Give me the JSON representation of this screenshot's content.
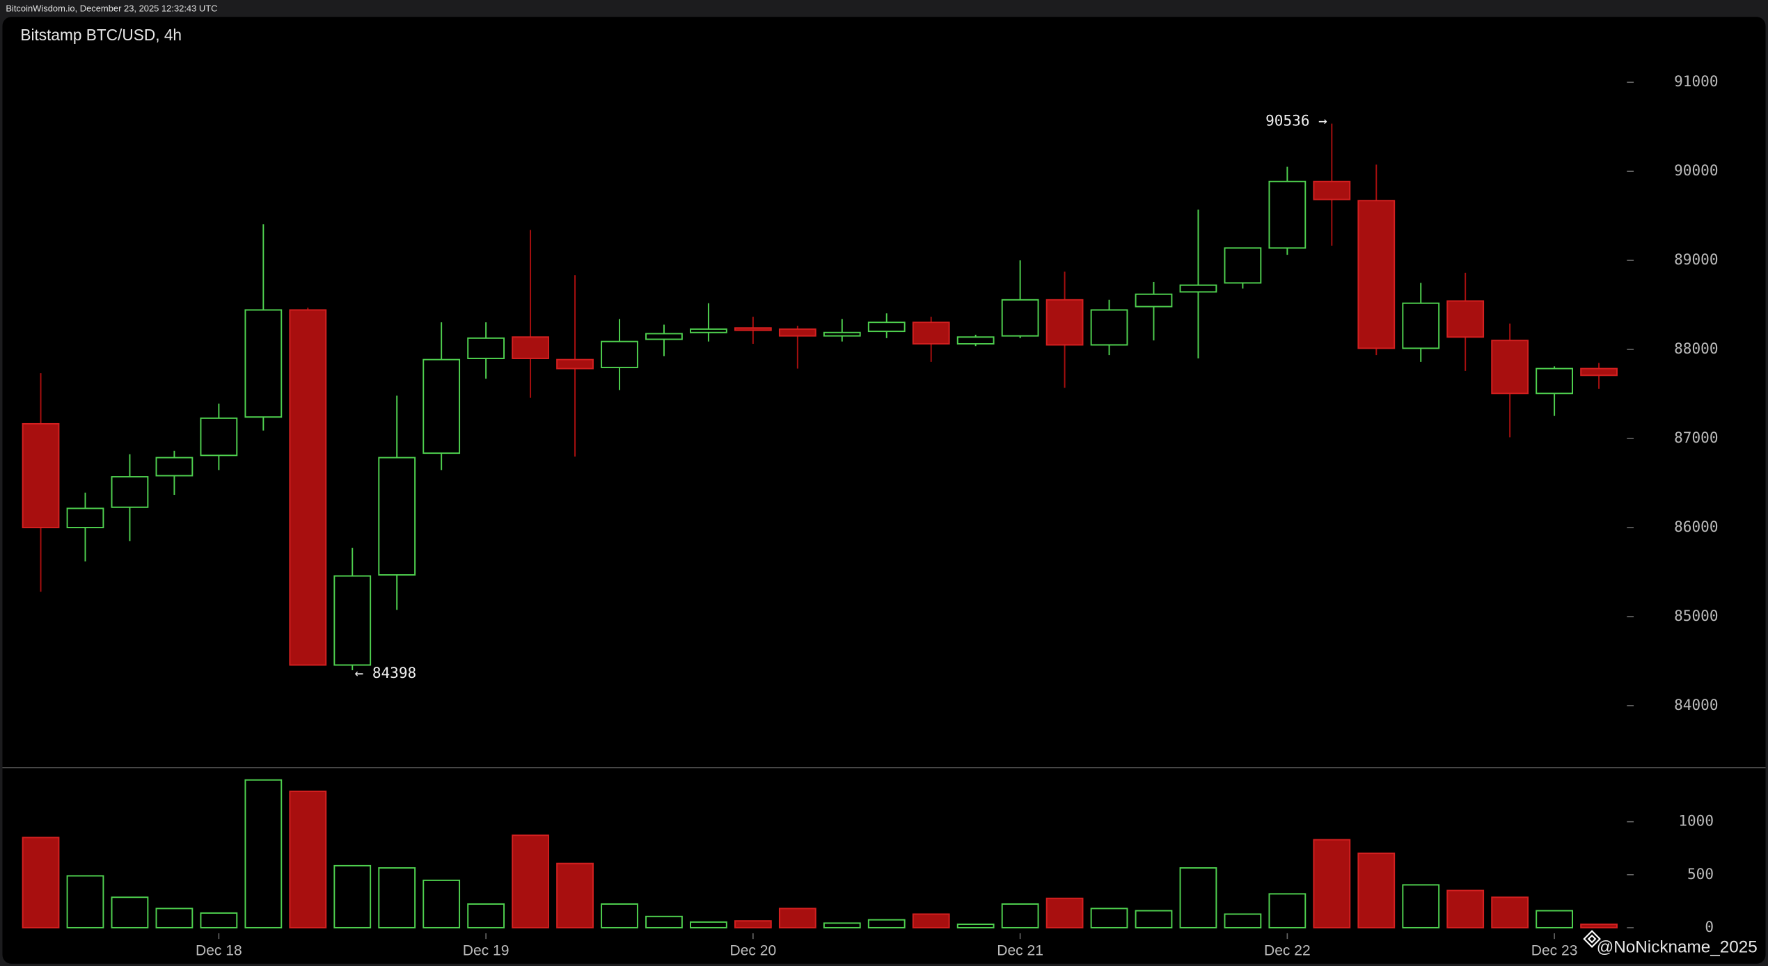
{
  "header": "BitcoinWisdom.io, December 23, 2025 12:32:43 UTC",
  "watermark": "@NoNickname_2025",
  "chart_data": {
    "type": "candlestick",
    "title": "Bitstamp BTC/USD, 4h",
    "categories": [
      null,
      null,
      null,
      null,
      "Dec 18",
      null,
      null,
      null,
      null,
      null,
      "Dec 19",
      null,
      null,
      null,
      null,
      null,
      "Dec 20",
      null,
      null,
      null,
      null,
      null,
      "Dec 21",
      null,
      null,
      null,
      null,
      null,
      "Dec 22",
      null,
      null,
      null,
      null,
      null,
      "Dec 23",
      null
    ],
    "open": [
      87165,
      86000,
      86228,
      86582,
      86810,
      87241,
      88443,
      84456,
      85468,
      86835,
      87899,
      88139,
      87886,
      87797,
      88114,
      88190,
      88241,
      88228,
      88152,
      88203,
      88304,
      88063,
      88152,
      88557,
      88051,
      88481,
      88646,
      88747,
      89139,
      89886,
      89671,
      88013,
      88544,
      88101,
      87506,
      87785
    ],
    "high": [
      87734,
      86392,
      86823,
      86861,
      87392,
      89405,
      88470,
      85772,
      87481,
      88304,
      88304,
      89342,
      88835,
      88342,
      88278,
      88519,
      88367,
      88266,
      88342,
      88405,
      88367,
      88165,
      89000,
      88873,
      88557,
      88759,
      89570,
      89139,
      90051,
      90536,
      90076,
      88747,
      88861,
      88291,
      87810,
      87848
    ],
    "low": [
      85279,
      85620,
      85848,
      86367,
      86646,
      87089,
      84450,
      84398,
      85076,
      86646,
      87671,
      87456,
      86797,
      87544,
      87924,
      88089,
      88063,
      87785,
      88089,
      88127,
      87861,
      88038,
      88127,
      87570,
      87937,
      88101,
      87899,
      88684,
      89063,
      89165,
      87937,
      87861,
      87759,
      87013,
      87253,
      87557
    ],
    "close": [
      86000,
      86215,
      86570,
      86785,
      87228,
      88443,
      84456,
      85456,
      86785,
      87886,
      88127,
      87899,
      87785,
      88089,
      88177,
      88228,
      88215,
      88152,
      88190,
      88304,
      88063,
      88139,
      88557,
      88051,
      88443,
      88620,
      88722,
      89139,
      89886,
      89684,
      88013,
      88519,
      88139,
      87506,
      87785,
      87709
    ],
    "volume": [
      851,
      489,
      287,
      181,
      138,
      1394,
      1287,
      585,
      564,
      447,
      223,
      872,
      606,
      223,
      106,
      53,
      64,
      181,
      43,
      74,
      128,
      32,
      223,
      277,
      181,
      160,
      564,
      128,
      319,
      830,
      702,
      404,
      351,
      287,
      160,
      32
    ],
    "high_label": "90536 →",
    "low_label": "← 84398",
    "up_color": "#4fd14f",
    "down_color": "#a80f0f",
    "ylim": [
      83300,
      91750
    ],
    "yticks": [
      84000,
      85000,
      86000,
      87000,
      88000,
      89000,
      90000,
      91000
    ],
    "y2lim": [
      -50,
      1500
    ],
    "y2ticks": [
      0,
      500,
      1000
    ],
    "grid": false
  }
}
